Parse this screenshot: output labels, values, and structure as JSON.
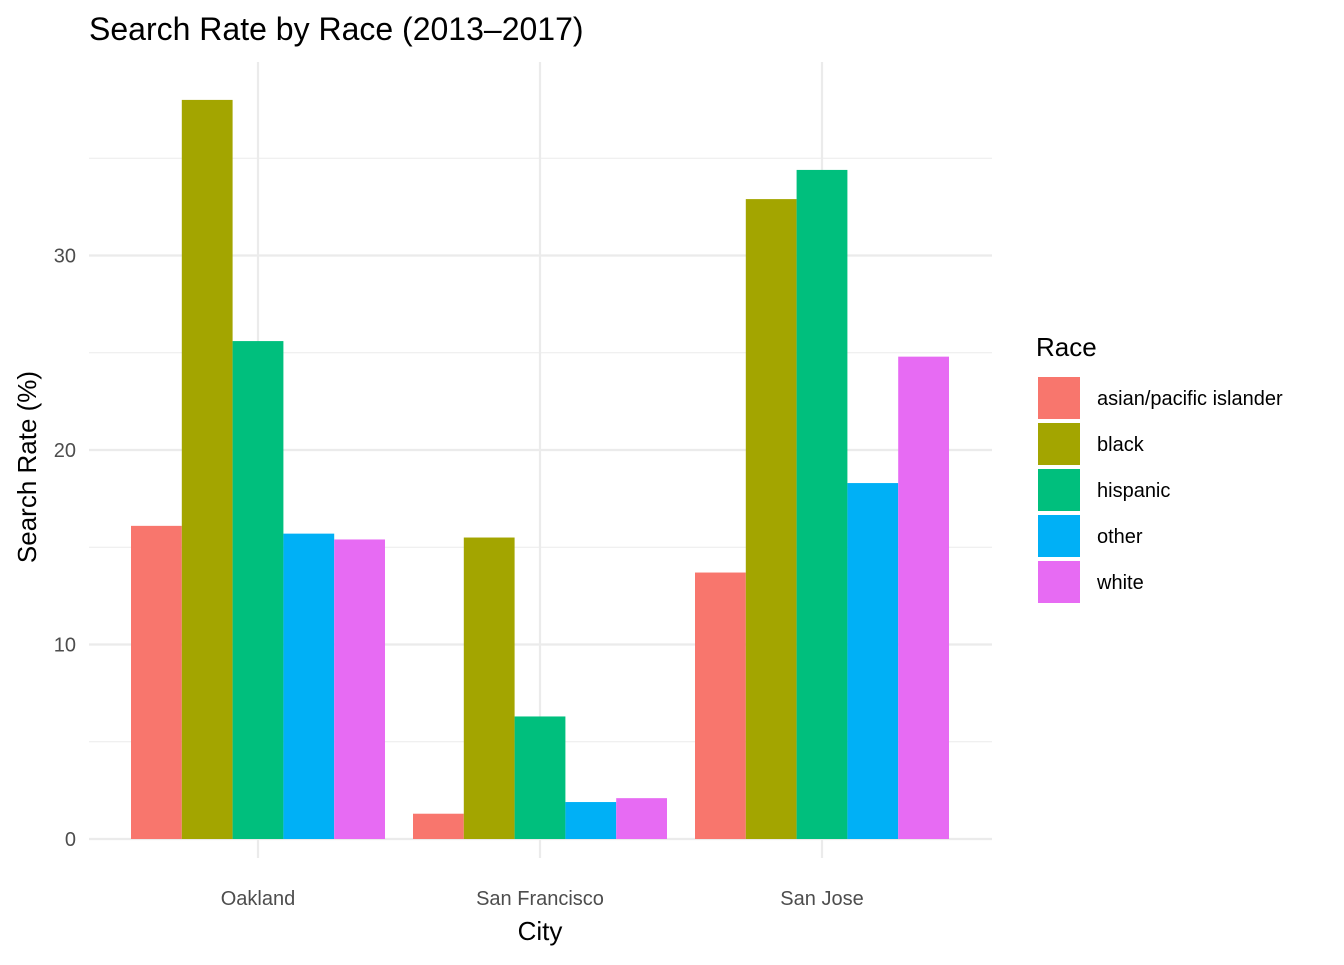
{
  "chart_data": {
    "type": "bar",
    "title": "Search Rate by Race (2013–2017)",
    "xlabel": "City",
    "ylabel": "Search Rate (%)",
    "categories": [
      "Oakland",
      "San Francisco",
      "San Jose"
    ],
    "ylim": [
      0,
      38
    ],
    "yticks": [
      0,
      10,
      20,
      30
    ],
    "yticks_labels": [
      "0",
      "10",
      "20",
      "30"
    ],
    "grid": true,
    "legend": {
      "title": "Race",
      "placement": "right"
    },
    "series": [
      {
        "name": "asian/pacific islander",
        "color": "#F8766D",
        "values": [
          16.1,
          1.3,
          13.7
        ]
      },
      {
        "name": "black",
        "color": "#A3A500",
        "values": [
          38.0,
          15.5,
          32.9
        ]
      },
      {
        "name": "hispanic",
        "color": "#00BF7D",
        "values": [
          25.6,
          6.3,
          34.4
        ]
      },
      {
        "name": "other",
        "color": "#00B0F6",
        "values": [
          15.7,
          1.9,
          18.3
        ]
      },
      {
        "name": "white",
        "color": "#E76BF3",
        "values": [
          15.4,
          2.1,
          24.8
        ]
      }
    ]
  }
}
